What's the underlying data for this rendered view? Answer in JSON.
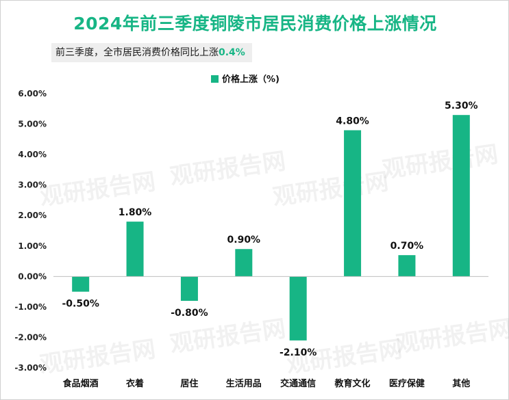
{
  "header": {
    "title": "2024年前三季度铜陵市居民消费价格上涨情况",
    "subtitle_prefix": "前三季度，全市居民消费价格同比上涨",
    "subtitle_value": "0.4%"
  },
  "colors": {
    "accent": "#17b585",
    "bar": "#17b585"
  },
  "watermark": "观研报告网",
  "chart_data": {
    "type": "bar",
    "categories": [
      "食品烟酒",
      "衣着",
      "居住",
      "生活用品",
      "交通通信",
      "教育文化",
      "医疗保健",
      "其他"
    ],
    "series": [
      {
        "name": "价格上涨（%)",
        "values": [
          -0.5,
          1.8,
          -0.8,
          0.9,
          -2.1,
          4.8,
          0.7,
          5.3
        ]
      }
    ],
    "data_labels": [
      "-0.50%",
      "1.80%",
      "-0.80%",
      "0.90%",
      "-2.10%",
      "4.80%",
      "0.70%",
      "5.30%"
    ],
    "y_ticks": [
      "6.00%",
      "5.00%",
      "4.00%",
      "3.00%",
      "2.00%",
      "1.00%",
      "0.00%",
      "-1.00%",
      "-2.00%",
      "-3.00%"
    ],
    "ylim": [
      -3,
      6
    ],
    "legend_position": "top-center",
    "grid": false
  }
}
